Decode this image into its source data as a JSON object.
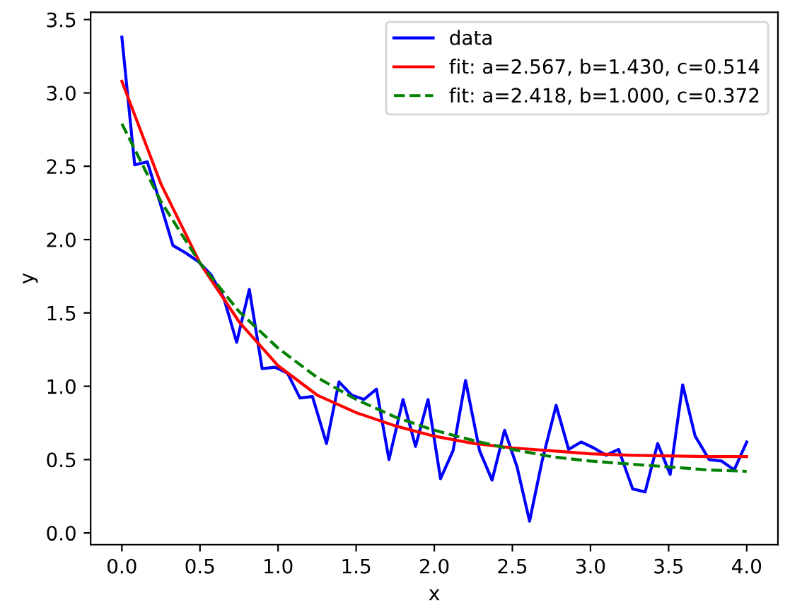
{
  "chart_data": {
    "type": "line",
    "xlabel": "x",
    "ylabel": "y",
    "legend": "top right",
    "grid": false,
    "xlim": [
      -0.2,
      4.2
    ],
    "ylim": [
      -0.08,
      3.55
    ],
    "xticks": [
      {
        "value": 0,
        "label": "0.0"
      },
      0.5,
      {
        "value": 1,
        "label": "1.0"
      },
      1.5,
      {
        "value": 2,
        "label": "2.0"
      },
      2.5,
      {
        "value": 3,
        "label": "3.0"
      },
      3.5,
      {
        "value": 4,
        "label": "4.0"
      }
    ],
    "yticks": [
      {
        "value": 0,
        "label": "0.0"
      },
      0.5,
      {
        "value": 1,
        "label": "1.0"
      },
      1.5,
      {
        "value": 2,
        "label": "2.0"
      },
      2.5,
      {
        "value": 3,
        "label": "3.0"
      },
      3.5
    ],
    "series": [
      {
        "name": "data",
        "color": "#0000ff",
        "line_style": "solid",
        "x": [
          0,
          0.082,
          0.163,
          0.245,
          0.327,
          0.408,
          0.49,
          0.571,
          0.653,
          0.735,
          0.816,
          0.898,
          0.98,
          1.06,
          1.14,
          1.22,
          1.31,
          1.39,
          1.47,
          1.55,
          1.63,
          1.71,
          1.8,
          1.88,
          1.96,
          2.04,
          2.12,
          2.2,
          2.29,
          2.37,
          2.45,
          2.53,
          2.61,
          2.69,
          2.78,
          2.86,
          2.94,
          3.02,
          3.1,
          3.18,
          3.27,
          3.35,
          3.43,
          3.51,
          3.59,
          3.67,
          3.76,
          3.84,
          3.92,
          4.0
        ],
        "values": [
          3.38,
          2.51,
          2.53,
          2.25,
          1.96,
          1.91,
          1.85,
          1.76,
          1.6,
          1.3,
          1.66,
          1.12,
          1.13,
          1.09,
          0.92,
          0.93,
          0.61,
          1.03,
          0.94,
          0.91,
          0.98,
          0.5,
          0.91,
          0.59,
          0.91,
          0.37,
          0.56,
          1.04,
          0.56,
          0.36,
          0.7,
          0.45,
          0.08,
          0.49,
          0.87,
          0.57,
          0.62,
          0.58,
          0.53,
          0.57,
          0.3,
          0.28,
          0.61,
          0.4,
          1.01,
          0.66,
          0.5,
          0.49,
          0.43,
          0.62
        ]
      },
      {
        "name": "fit: a=2.567, b=1.430, c=0.514",
        "color": "#ff0000",
        "line_style": "solid",
        "x": [
          0,
          0.25,
          0.5,
          0.75,
          1.0,
          1.25,
          1.5,
          1.75,
          2.0,
          2.25,
          2.5,
          2.75,
          3.0,
          3.25,
          3.5,
          3.75,
          4.0
        ],
        "values": [
          3.08,
          2.38,
          1.84,
          1.44,
          1.14,
          0.94,
          0.82,
          0.73,
          0.66,
          0.61,
          0.58,
          0.56,
          0.54,
          0.53,
          0.525,
          0.52,
          0.52
        ]
      },
      {
        "name": "fit: a=2.418, b=1.000, c=0.372",
        "color": "#008000",
        "line_style": "dashed",
        "x": [
          0,
          0.25,
          0.5,
          0.75,
          1.0,
          1.25,
          1.5,
          1.75,
          2.0,
          2.25,
          2.5,
          2.75,
          3.0,
          3.25,
          3.5,
          3.75,
          4.0
        ],
        "values": [
          2.79,
          2.26,
          1.84,
          1.51,
          1.26,
          1.06,
          0.91,
          0.79,
          0.7,
          0.63,
          0.57,
          0.52,
          0.49,
          0.47,
          0.45,
          0.43,
          0.42
        ]
      }
    ]
  }
}
